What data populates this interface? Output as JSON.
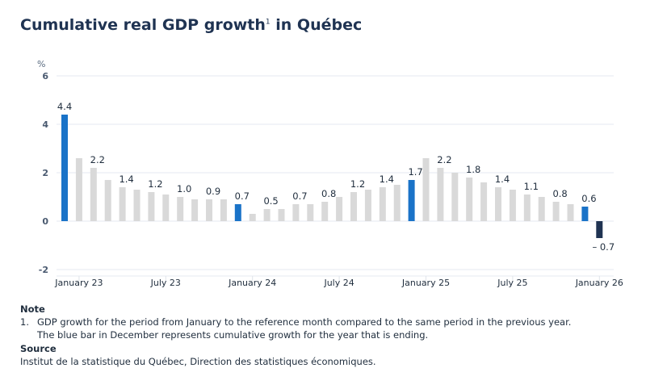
{
  "chart_data": {
    "type": "bar",
    "title": "Cumulative real GDP growth",
    "title_footnote": "1",
    "title_suffix": "in Québec",
    "ylabel": "%",
    "ylim": [
      -2,
      6
    ],
    "yticks": [
      6,
      4,
      2,
      0,
      -2
    ],
    "grid": true,
    "categories": [
      "Dec 22",
      "Jan 23",
      "Feb 23",
      "Mar 23",
      "Apr 23",
      "May 23",
      "Jun 23",
      "Jul 23",
      "Aug 23",
      "Sep 23",
      "Oct 23",
      "Nov 23",
      "Dec 23",
      "Jan 24",
      "Feb 24",
      "Mar 24",
      "Apr 24",
      "May 24",
      "Jun 24",
      "Jul 24",
      "Aug 24",
      "Sep 24",
      "Oct 24",
      "Nov 24",
      "Dec 24",
      "Jan 25",
      "Feb 25",
      "Mar 25",
      "Apr 25",
      "May 25",
      "Jun 25",
      "Jul 25",
      "Aug 25",
      "Sep 25",
      "Oct 25",
      "Nov 25",
      "Dec 25",
      "Jan 26"
    ],
    "values": [
      4.4,
      2.6,
      2.2,
      1.7,
      1.4,
      1.3,
      1.2,
      1.1,
      1.0,
      0.9,
      0.9,
      0.9,
      0.7,
      0.3,
      0.5,
      0.5,
      0.7,
      0.7,
      0.8,
      1.0,
      1.2,
      1.3,
      1.4,
      1.5,
      1.7,
      2.6,
      2.2,
      2.0,
      1.8,
      1.6,
      1.4,
      1.3,
      1.1,
      1.0,
      0.8,
      0.7,
      0.6,
      -0.7
    ],
    "data_labels": {
      "0": "4.4",
      "2": "2.2",
      "4": "1.4",
      "6": "1.2",
      "8": "1.0",
      "10": "0.9",
      "12": "0.7",
      "14": "0.5",
      "16": "0.7",
      "18": "0.8",
      "20": "1.2",
      "22": "1.4",
      "24": "1.7",
      "26": "2.2",
      "28": "1.8",
      "30": "1.4",
      "32": "1.1",
      "34": "0.8",
      "36": "0.6",
      "37": "– 0.7"
    },
    "xtick_labels": [
      {
        "index": 1,
        "label": "January 23"
      },
      {
        "index": 7,
        "label": "July 23"
      },
      {
        "index": 13,
        "label": "January 24"
      },
      {
        "index": 19,
        "label": "July 24"
      },
      {
        "index": 25,
        "label": "January 25"
      },
      {
        "index": 31,
        "label": "July 25"
      },
      {
        "index": 37,
        "label": "January 26"
      }
    ],
    "colors": {
      "regular": "#d9d9d9",
      "december": "#1a73c8",
      "latest": "#1f3352"
    },
    "december_indices": [
      0,
      12,
      24,
      36
    ],
    "latest_index": 37
  },
  "notes": {
    "note_heading": "Note",
    "note_number": "1.",
    "note_line1": "GDP growth for the period from January to the reference month compared to the same period in the previous year.",
    "note_line2": "The blue bar in December represents cumulative growth for the year that is ending.",
    "source_heading": "Source",
    "source_text": "Institut de la statistique du Québec, Direction des statistiques économiques."
  }
}
